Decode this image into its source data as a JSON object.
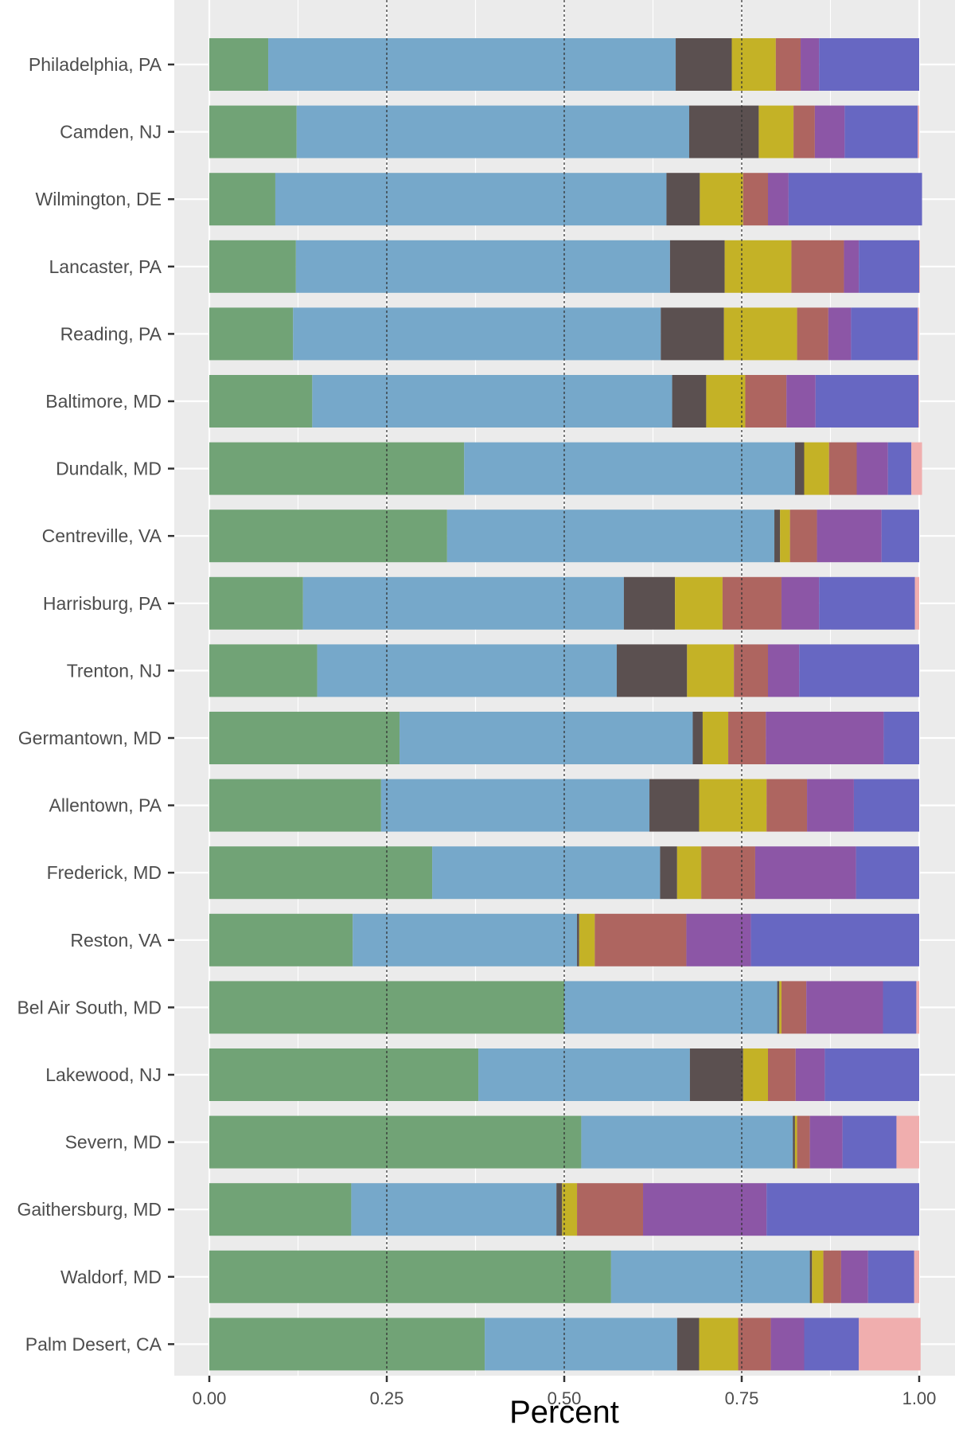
{
  "chart_data": {
    "type": "bar",
    "orientation": "horizontal",
    "stacked": true,
    "title": "",
    "xlabel": "Percent",
    "ylabel": "",
    "xlim": [
      0,
      1
    ],
    "x_ticks": [
      "0.00",
      "0.25",
      "0.50",
      "0.75",
      "1.00"
    ],
    "x_tick_values": [
      0,
      0.25,
      0.5,
      0.75,
      1
    ],
    "reference_lines": [
      0.25,
      0.5,
      0.75
    ],
    "legend": "none",
    "grid": true,
    "panel_background": "#ebebeb",
    "grid_color": "#ffffff",
    "reference_line_color": "#333333",
    "categories": [
      "Philadelphia, PA",
      "Camden, NJ",
      "Wilmington, DE",
      "Lancaster, PA",
      "Reading, PA",
      "Baltimore, MD",
      "Dundalk, MD",
      "Centreville, VA",
      "Harrisburg, PA",
      "Trenton, NJ",
      "Germantown, MD",
      "Allentown, PA",
      "Frederick, MD",
      "Reston, VA",
      "Bel Air South, MD",
      "Lakewood, NJ",
      "Severn, MD",
      "Gaithersburg, MD",
      "Waldorf, MD",
      "Palm Desert, CA"
    ],
    "series": [
      {
        "color": "#71a376",
        "values": [
          0.083,
          0.123,
          0.093,
          0.122,
          0.118,
          0.145,
          0.359,
          0.335,
          0.132,
          0.152,
          0.268,
          0.242,
          0.314,
          0.202,
          0.5,
          0.379,
          0.524,
          0.2,
          0.566,
          0.388
        ]
      },
      {
        "color": "#76a8ca",
        "values": [
          0.574,
          0.553,
          0.551,
          0.527,
          0.518,
          0.507,
          0.466,
          0.461,
          0.452,
          0.422,
          0.413,
          0.378,
          0.321,
          0.316,
          0.3,
          0.298,
          0.298,
          0.289,
          0.28,
          0.271
        ]
      },
      {
        "color": "#5b5050",
        "values": [
          0.079,
          0.098,
          0.047,
          0.077,
          0.089,
          0.048,
          0.013,
          0.008,
          0.072,
          0.099,
          0.014,
          0.07,
          0.024,
          0.003,
          0.003,
          0.075,
          0.003,
          0.008,
          0.003,
          0.031
        ]
      },
      {
        "color": "#c4b226",
        "values": [
          0.062,
          0.049,
          0.061,
          0.094,
          0.103,
          0.055,
          0.035,
          0.014,
          0.067,
          0.066,
          0.036,
          0.095,
          0.034,
          0.022,
          0.003,
          0.035,
          0.003,
          0.021,
          0.016,
          0.055
        ]
      },
      {
        "color": "#ae6560",
        "values": [
          0.035,
          0.03,
          0.035,
          0.074,
          0.044,
          0.058,
          0.039,
          0.038,
          0.083,
          0.048,
          0.053,
          0.057,
          0.076,
          0.129,
          0.035,
          0.039,
          0.018,
          0.093,
          0.025,
          0.046
        ]
      },
      {
        "color": "#8c56a6",
        "values": [
          0.026,
          0.042,
          0.029,
          0.021,
          0.032,
          0.041,
          0.044,
          0.091,
          0.053,
          0.044,
          0.166,
          0.066,
          0.142,
          0.091,
          0.108,
          0.041,
          0.046,
          0.174,
          0.038,
          0.047
        ]
      },
      {
        "color": "#6767c2",
        "values": [
          0.141,
          0.103,
          0.188,
          0.085,
          0.094,
          0.145,
          0.033,
          0.053,
          0.135,
          0.169,
          0.05,
          0.092,
          0.089,
          0.237,
          0.047,
          0.133,
          0.076,
          0.215,
          0.065,
          0.077
        ]
      },
      {
        "color": "#f0aeae",
        "values": [
          0.0,
          0.002,
          0.0,
          0.001,
          0.002,
          0.001,
          0.015,
          0.0,
          0.006,
          0.0,
          0.0,
          0.0,
          0.0,
          0.0,
          0.004,
          0.0,
          0.032,
          0.0,
          0.007,
          0.087
        ]
      }
    ]
  }
}
